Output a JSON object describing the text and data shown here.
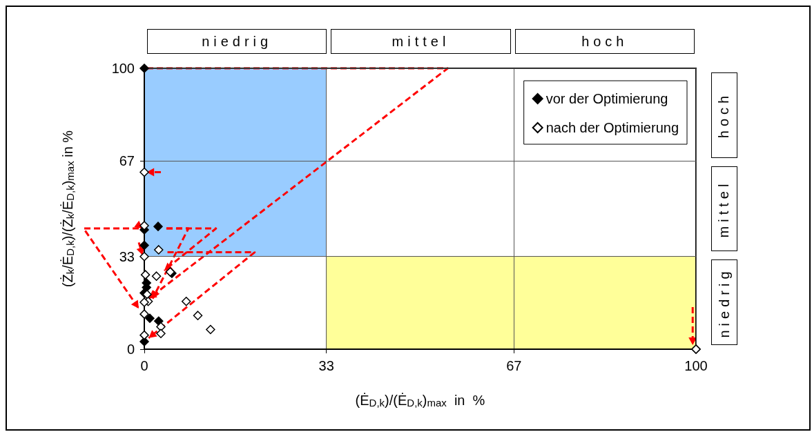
{
  "chart_data": {
    "type": "scatter",
    "xlabel": "(Ė$_{D,k}$)/(Ė$_{D,k}$)$_{max}$  in  %",
    "ylabel": "(Ż$_{k}$/Ė$_{D,k}$)/(Ż$_{k}$/Ė$_{D,k}$)$_{max}$ in %",
    "series": [
      {
        "name": "vor der Optimierung",
        "color": "#000000",
        "x": [
          0,
          0,
          2.5,
          0,
          5,
          0.4,
          0.4,
          0,
          1,
          2.6,
          0,
          100
        ],
        "values": [
          100,
          42.5,
          43.7,
          37,
          27,
          23.6,
          22,
          20,
          11,
          10,
          2.7,
          0
        ]
      },
      {
        "name": "nach der Optimierung",
        "color": "#ffffff",
        "x": [
          0,
          0,
          0,
          2.6,
          0.2,
          2.2,
          4.7,
          0.5,
          0.7,
          0,
          0,
          7.6,
          9.7,
          12,
          3,
          3,
          0,
          100
        ],
        "values": [
          63,
          44,
          33,
          35.4,
          26.5,
          26,
          27.5,
          19.5,
          17,
          16.7,
          12.5,
          17,
          12,
          7,
          8,
          5.6,
          5,
          0
        ]
      }
    ],
    "xlim": [
      0,
      100
    ],
    "ylim": [
      0,
      100
    ],
    "xticks": [
      0,
      33,
      67,
      100
    ],
    "yticks": [
      0,
      33,
      67,
      100
    ],
    "annotations": [
      "niedrig",
      "mittel",
      "hoch",
      "hoch",
      "mittel",
      "niedrig"
    ],
    "grid": true,
    "legend": "top right",
    "marker": "diamond"
  }
}
